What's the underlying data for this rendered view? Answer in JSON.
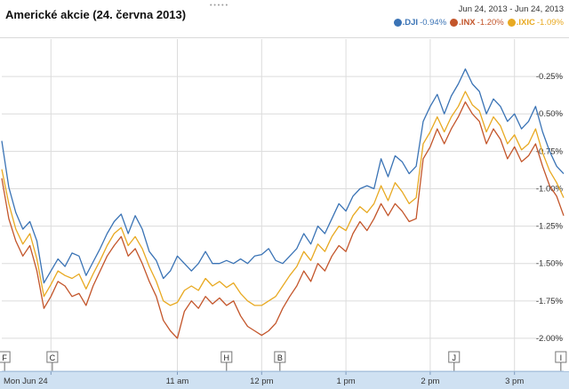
{
  "chart_data": {
    "type": "line",
    "title": "Americké akcie (24. června 2013)",
    "date_range": "Jun 24, 2013  -  Jun 24, 2013",
    "y_ticks": [
      -0.25,
      -0.5,
      -0.75,
      -1.0,
      -1.25,
      -1.5,
      -1.75,
      -2.0
    ],
    "y_tick_labels": [
      "-0.25%",
      "-0.50%",
      "-0.75%",
      "-1.00%",
      "-1.25%",
      "-1.50%",
      "-1.75%",
      "-2.00%"
    ],
    "ylim": [
      -2.22,
      0.0
    ],
    "x_tick_labels": [
      "Mon Jun 24",
      "11 am",
      "12 pm",
      "1 pm",
      "2 pm",
      "3 pm"
    ],
    "x_ticks_minutes": [
      0,
      90,
      150,
      210,
      270,
      330
    ],
    "xlim_minutes": [
      -35,
      365
    ],
    "grid": true,
    "legend_position": "top-right",
    "series": [
      {
        "name": ".DJI",
        "change": "-0.94%",
        "color": "#3a73b5",
        "points": [
          [
            -35,
            -0.68
          ],
          [
            -30,
            -0.99
          ],
          [
            -25,
            -1.16
          ],
          [
            -20,
            -1.27
          ],
          [
            -15,
            -1.22
          ],
          [
            -10,
            -1.35
          ],
          [
            -5,
            -1.63
          ],
          [
            0,
            -1.55
          ],
          [
            5,
            -1.47
          ],
          [
            10,
            -1.52
          ],
          [
            15,
            -1.43
          ],
          [
            20,
            -1.45
          ],
          [
            25,
            -1.58
          ],
          [
            30,
            -1.49
          ],
          [
            35,
            -1.4
          ],
          [
            40,
            -1.3
          ],
          [
            45,
            -1.22
          ],
          [
            50,
            -1.17
          ],
          [
            55,
            -1.3
          ],
          [
            60,
            -1.18
          ],
          [
            65,
            -1.27
          ],
          [
            70,
            -1.42
          ],
          [
            75,
            -1.48
          ],
          [
            80,
            -1.6
          ],
          [
            85,
            -1.55
          ],
          [
            90,
            -1.45
          ],
          [
            95,
            -1.5
          ],
          [
            100,
            -1.55
          ],
          [
            105,
            -1.5
          ],
          [
            110,
            -1.42
          ],
          [
            115,
            -1.5
          ],
          [
            120,
            -1.5
          ],
          [
            125,
            -1.48
          ],
          [
            130,
            -1.5
          ],
          [
            135,
            -1.47
          ],
          [
            140,
            -1.5
          ],
          [
            145,
            -1.45
          ],
          [
            150,
            -1.44
          ],
          [
            155,
            -1.4
          ],
          [
            160,
            -1.48
          ],
          [
            165,
            -1.5
          ],
          [
            170,
            -1.45
          ],
          [
            175,
            -1.4
          ],
          [
            180,
            -1.3
          ],
          [
            185,
            -1.37
          ],
          [
            190,
            -1.25
          ],
          [
            195,
            -1.3
          ],
          [
            200,
            -1.2
          ],
          [
            205,
            -1.1
          ],
          [
            210,
            -1.15
          ],
          [
            215,
            -1.05
          ],
          [
            220,
            -1.0
          ],
          [
            225,
            -0.98
          ],
          [
            230,
            -1.0
          ],
          [
            235,
            -0.8
          ],
          [
            240,
            -0.92
          ],
          [
            245,
            -0.78
          ],
          [
            250,
            -0.82
          ],
          [
            255,
            -0.9
          ],
          [
            260,
            -0.85
          ],
          [
            265,
            -0.55
          ],
          [
            270,
            -0.45
          ],
          [
            275,
            -0.37
          ],
          [
            280,
            -0.5
          ],
          [
            285,
            -0.38
          ],
          [
            290,
            -0.3
          ],
          [
            295,
            -0.2
          ],
          [
            300,
            -0.3
          ],
          [
            305,
            -0.35
          ],
          [
            310,
            -0.5
          ],
          [
            315,
            -0.4
          ],
          [
            320,
            -0.45
          ],
          [
            325,
            -0.55
          ],
          [
            330,
            -0.5
          ],
          [
            335,
            -0.6
          ],
          [
            340,
            -0.55
          ],
          [
            345,
            -0.45
          ],
          [
            350,
            -0.62
          ],
          [
            355,
            -0.75
          ],
          [
            360,
            -0.85
          ],
          [
            365,
            -0.9
          ]
        ]
      },
      {
        "name": ".INX",
        "change": "-1.20%",
        "color": "#c3552a",
        "points": [
          [
            -35,
            -0.93
          ],
          [
            -30,
            -1.2
          ],
          [
            -25,
            -1.35
          ],
          [
            -20,
            -1.45
          ],
          [
            -15,
            -1.38
          ],
          [
            -10,
            -1.55
          ],
          [
            -5,
            -1.8
          ],
          [
            0,
            -1.72
          ],
          [
            5,
            -1.62
          ],
          [
            10,
            -1.65
          ],
          [
            15,
            -1.72
          ],
          [
            20,
            -1.7
          ],
          [
            25,
            -1.78
          ],
          [
            30,
            -1.65
          ],
          [
            35,
            -1.55
          ],
          [
            40,
            -1.45
          ],
          [
            45,
            -1.38
          ],
          [
            50,
            -1.32
          ],
          [
            55,
            -1.45
          ],
          [
            60,
            -1.4
          ],
          [
            65,
            -1.5
          ],
          [
            70,
            -1.62
          ],
          [
            75,
            -1.72
          ],
          [
            80,
            -1.88
          ],
          [
            85,
            -1.95
          ],
          [
            90,
            -2.0
          ],
          [
            95,
            -1.82
          ],
          [
            100,
            -1.75
          ],
          [
            105,
            -1.8
          ],
          [
            110,
            -1.72
          ],
          [
            115,
            -1.77
          ],
          [
            120,
            -1.73
          ],
          [
            125,
            -1.78
          ],
          [
            130,
            -1.75
          ],
          [
            135,
            -1.85
          ],
          [
            140,
            -1.92
          ],
          [
            145,
            -1.95
          ],
          [
            150,
            -1.98
          ],
          [
            155,
            -1.95
          ],
          [
            160,
            -1.9
          ],
          [
            165,
            -1.8
          ],
          [
            170,
            -1.72
          ],
          [
            175,
            -1.65
          ],
          [
            180,
            -1.55
          ],
          [
            185,
            -1.62
          ],
          [
            190,
            -1.5
          ],
          [
            195,
            -1.55
          ],
          [
            200,
            -1.45
          ],
          [
            205,
            -1.38
          ],
          [
            210,
            -1.42
          ],
          [
            215,
            -1.3
          ],
          [
            220,
            -1.22
          ],
          [
            225,
            -1.28
          ],
          [
            230,
            -1.2
          ],
          [
            235,
            -1.1
          ],
          [
            240,
            -1.18
          ],
          [
            245,
            -1.1
          ],
          [
            250,
            -1.15
          ],
          [
            255,
            -1.22
          ],
          [
            260,
            -1.2
          ],
          [
            265,
            -0.8
          ],
          [
            270,
            -0.72
          ],
          [
            275,
            -0.6
          ],
          [
            280,
            -0.7
          ],
          [
            285,
            -0.6
          ],
          [
            290,
            -0.52
          ],
          [
            295,
            -0.42
          ],
          [
            300,
            -0.5
          ],
          [
            305,
            -0.55
          ],
          [
            310,
            -0.7
          ],
          [
            315,
            -0.6
          ],
          [
            320,
            -0.67
          ],
          [
            325,
            -0.8
          ],
          [
            330,
            -0.72
          ],
          [
            335,
            -0.82
          ],
          [
            340,
            -0.78
          ],
          [
            345,
            -0.7
          ],
          [
            350,
            -0.85
          ],
          [
            355,
            -0.98
          ],
          [
            360,
            -1.05
          ],
          [
            365,
            -1.18
          ]
        ]
      },
      {
        "name": ".IXIC",
        "change": "-1.09%",
        "color": "#e8a921",
        "points": [
          [
            -35,
            -0.87
          ],
          [
            -30,
            -1.1
          ],
          [
            -25,
            -1.27
          ],
          [
            -20,
            -1.37
          ],
          [
            -15,
            -1.3
          ],
          [
            -10,
            -1.47
          ],
          [
            -5,
            -1.72
          ],
          [
            0,
            -1.64
          ],
          [
            5,
            -1.55
          ],
          [
            10,
            -1.58
          ],
          [
            15,
            -1.6
          ],
          [
            20,
            -1.57
          ],
          [
            25,
            -1.67
          ],
          [
            30,
            -1.57
          ],
          [
            35,
            -1.48
          ],
          [
            40,
            -1.38
          ],
          [
            45,
            -1.3
          ],
          [
            50,
            -1.26
          ],
          [
            55,
            -1.38
          ],
          [
            60,
            -1.32
          ],
          [
            65,
            -1.4
          ],
          [
            70,
            -1.52
          ],
          [
            75,
            -1.62
          ],
          [
            80,
            -1.75
          ],
          [
            85,
            -1.78
          ],
          [
            90,
            -1.76
          ],
          [
            95,
            -1.68
          ],
          [
            100,
            -1.65
          ],
          [
            105,
            -1.68
          ],
          [
            110,
            -1.6
          ],
          [
            115,
            -1.65
          ],
          [
            120,
            -1.62
          ],
          [
            125,
            -1.66
          ],
          [
            130,
            -1.63
          ],
          [
            135,
            -1.7
          ],
          [
            140,
            -1.75
          ],
          [
            145,
            -1.78
          ],
          [
            150,
            -1.78
          ],
          [
            155,
            -1.75
          ],
          [
            160,
            -1.72
          ],
          [
            165,
            -1.65
          ],
          [
            170,
            -1.58
          ],
          [
            175,
            -1.52
          ],
          [
            180,
            -1.42
          ],
          [
            185,
            -1.48
          ],
          [
            190,
            -1.37
          ],
          [
            195,
            -1.42
          ],
          [
            200,
            -1.32
          ],
          [
            205,
            -1.25
          ],
          [
            210,
            -1.28
          ],
          [
            215,
            -1.18
          ],
          [
            220,
            -1.12
          ],
          [
            225,
            -1.16
          ],
          [
            230,
            -1.1
          ],
          [
            235,
            -0.98
          ],
          [
            240,
            -1.08
          ],
          [
            245,
            -0.96
          ],
          [
            250,
            -1.02
          ],
          [
            255,
            -1.1
          ],
          [
            260,
            -1.06
          ],
          [
            265,
            -0.7
          ],
          [
            270,
            -0.62
          ],
          [
            275,
            -0.52
          ],
          [
            280,
            -0.62
          ],
          [
            285,
            -0.52
          ],
          [
            290,
            -0.45
          ],
          [
            295,
            -0.35
          ],
          [
            300,
            -0.44
          ],
          [
            305,
            -0.48
          ],
          [
            310,
            -0.62
          ],
          [
            315,
            -0.52
          ],
          [
            320,
            -0.58
          ],
          [
            325,
            -0.7
          ],
          [
            330,
            -0.64
          ],
          [
            335,
            -0.74
          ],
          [
            340,
            -0.7
          ],
          [
            345,
            -0.6
          ],
          [
            350,
            -0.76
          ],
          [
            355,
            -0.88
          ],
          [
            360,
            -0.96
          ],
          [
            365,
            -1.06
          ]
        ]
      }
    ],
    "event_markers": [
      {
        "label": "F",
        "minute": -33
      },
      {
        "label": "C",
        "minute": 1
      },
      {
        "label": "H",
        "minute": 125
      },
      {
        "label": "B",
        "minute": 163
      },
      {
        "label": "J",
        "minute": 287
      },
      {
        "label": "I",
        "minute": 363
      }
    ]
  }
}
